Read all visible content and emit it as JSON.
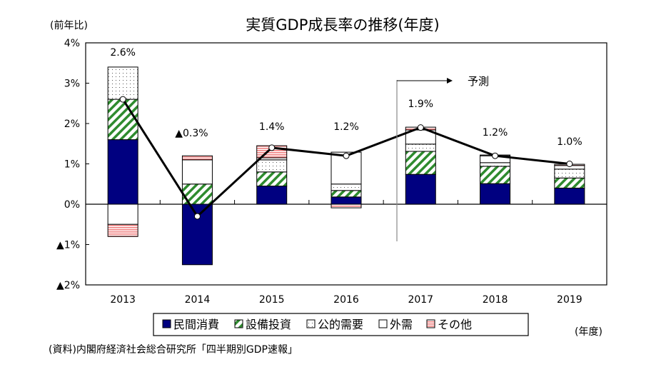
{
  "chart_data": {
    "type": "bar",
    "stacked": true,
    "title": "実質GDP成長率の推移(年度)",
    "ylabel": "(前年比)",
    "xlabel": "(年度)",
    "source": "(資料)内閣府経済社会総合研究所「四半期別GDP速報」",
    "forecast_label": "予測",
    "forecast_from": "2017",
    "ylim": [
      -2,
      4
    ],
    "yticks": [
      4,
      3,
      2,
      1,
      0,
      -1,
      -2
    ],
    "ytick_labels": [
      "4%",
      "3%",
      "2%",
      "1%",
      "0%",
      "▲1%",
      "▲2%"
    ],
    "categories": [
      "2013",
      "2014",
      "2015",
      "2016",
      "2017",
      "2018",
      "2019"
    ],
    "series": [
      {
        "name": "民間消費",
        "color": "#000080",
        "pattern": "solid",
        "values": [
          1.6,
          -1.5,
          0.45,
          0.18,
          0.74,
          0.51,
          0.4
        ]
      },
      {
        "name": "設備投資",
        "color": "#2e8b2e",
        "pattern": "hatch",
        "values": [
          1.0,
          0.5,
          0.35,
          0.16,
          0.57,
          0.43,
          0.25
        ]
      },
      {
        "name": "公的需要",
        "color": "#555555",
        "pattern": "dots",
        "values": [
          0.8,
          0,
          0.3,
          0.16,
          0.18,
          0.09,
          0.22
        ]
      },
      {
        "name": "外需",
        "color": "#ffffff",
        "pattern": "blank",
        "values": [
          -0.5,
          0.6,
          0.05,
          0.79,
          0.35,
          0.17,
          0.09
        ]
      },
      {
        "name": "その他",
        "color": "#f08080",
        "pattern": "hlines",
        "values": [
          -0.3,
          0.1,
          0.3,
          -0.09,
          0.07,
          0.02,
          0.03
        ]
      }
    ],
    "line": {
      "values": [
        2.6,
        -0.3,
        1.4,
        1.2,
        1.9,
        1.2,
        1.0
      ],
      "labels": [
        "2.6%",
        "▲0.3%",
        "1.4%",
        "1.2%",
        "1.9%",
        "1.2%",
        "1.0%"
      ]
    },
    "grid": false,
    "legend": "bottom"
  }
}
